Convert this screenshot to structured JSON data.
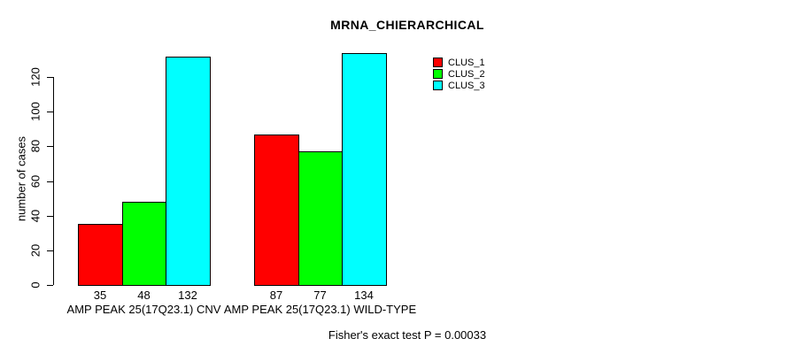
{
  "chart_data": {
    "type": "bar",
    "title": "MRNA_CHIERARCHICAL",
    "xlabel": "",
    "ylabel": "number of cases",
    "categories": [
      "AMP PEAK 25(17Q23.1) CNV",
      "AMP PEAK 25(17Q23.1) WILD-TYPE"
    ],
    "series": [
      {
        "name": "CLUS_1",
        "color": "#ff0000",
        "values": [
          35,
          87
        ]
      },
      {
        "name": "CLUS_2",
        "color": "#00ff00",
        "values": [
          48,
          77
        ]
      },
      {
        "name": "CLUS_3",
        "color": "#00ffff",
        "values": [
          132,
          134
        ]
      }
    ],
    "bar_value_labels": [
      [
        35,
        48,
        132
      ],
      [
        87,
        77,
        134
      ]
    ],
    "yticks": [
      0,
      20,
      40,
      60,
      80,
      100,
      120
    ],
    "ylim": [
      0,
      137
    ],
    "grid": false,
    "legend_position": "top-right",
    "legend_items": [
      "CLUS_1",
      "CLUS_2",
      "CLUS_3"
    ],
    "annotation": "Fisher's exact test P = 0.00033",
    "axis_color": "#000000",
    "background_color": "#ffffff"
  }
}
